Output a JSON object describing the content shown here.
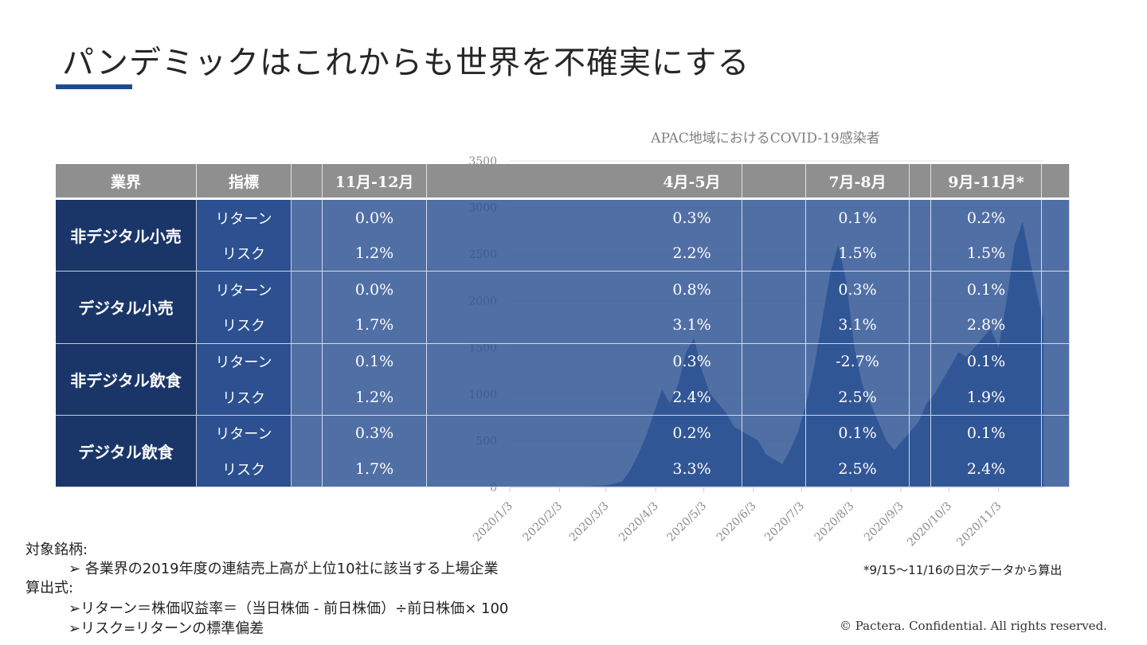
{
  "title": "パンデミックはこれからも世界を不確実にする",
  "colors": {
    "accent": "#1e4b8f",
    "header": "#8f8f8f",
    "industry": "#1a3668",
    "metric": "#2c5090",
    "area": "#2f5394"
  },
  "table": {
    "headers": [
      "業界",
      "指標",
      "11月-12月",
      "4月-5月",
      "7月-8月",
      "9月-11月*"
    ],
    "rows": [
      {
        "industry": "非デジタル小売",
        "metrics": [
          {
            "name": "リターン",
            "values": [
              "0.0%",
              "0.3%",
              "0.1%",
              "0.2%"
            ]
          },
          {
            "name": "リスク",
            "values": [
              "1.2%",
              "2.2%",
              "1.5%",
              "1.5%"
            ]
          }
        ]
      },
      {
        "industry": "デジタル小売",
        "metrics": [
          {
            "name": "リターン",
            "values": [
              "0.0%",
              "0.8%",
              "0.3%",
              "0.1%"
            ]
          },
          {
            "name": "リスク",
            "values": [
              "1.7%",
              "3.1%",
              "3.1%",
              "2.8%"
            ]
          }
        ]
      },
      {
        "industry": "非デジタル飲食",
        "metrics": [
          {
            "name": "リターン",
            "values": [
              "0.1%",
              "0.3%",
              "-2.7%",
              "0.1%"
            ]
          },
          {
            "name": "リスク",
            "values": [
              "1.2%",
              "2.4%",
              "2.5%",
              "1.9%"
            ]
          }
        ]
      },
      {
        "industry": "デジタル飲食",
        "metrics": [
          {
            "name": "リターン",
            "values": [
              "0.3%",
              "0.2%",
              "0.1%",
              "0.1%"
            ]
          },
          {
            "name": "リスク",
            "values": [
              "1.7%",
              "3.3%",
              "2.5%",
              "2.4%"
            ]
          }
        ]
      }
    ]
  },
  "chart_data": {
    "type": "area",
    "title": "APAC地域におけるCOVID-19感染者",
    "ylim": [
      0,
      3500
    ],
    "yticks": [
      "0",
      "500",
      "1000",
      "1500",
      "2000",
      "2500",
      "3000",
      "3500"
    ],
    "xticks": [
      "2020/1/3",
      "2020/2/3",
      "2020/3/3",
      "2020/4/3",
      "2020/5/3",
      "2020/6/3",
      "2020/7/3",
      "2020/8/3",
      "2020/9/3",
      "2020/10/3",
      "2020/11/3"
    ],
    "xlim_days": [
      0,
      333
    ],
    "series": [
      {
        "name": "COVID-19感染者",
        "x_days": [
          0,
          20,
          40,
          60,
          65,
          70,
          75,
          80,
          85,
          88,
          92,
          95,
          100,
          105,
          110,
          115,
          120,
          125,
          130,
          135,
          140,
          145,
          150,
          155,
          160,
          165,
          170,
          175,
          180,
          185,
          190,
          195,
          200,
          205,
          210,
          215,
          220,
          225,
          230,
          235,
          240,
          245,
          250,
          255,
          260,
          265,
          270,
          275,
          280,
          285,
          290,
          295,
          300,
          305,
          310,
          315,
          320,
          325,
          330,
          333
        ],
        "values": [
          0,
          0,
          5,
          20,
          40,
          60,
          180,
          350,
          550,
          700,
          900,
          1050,
          900,
          1100,
          1450,
          1600,
          1250,
          1000,
          900,
          800,
          650,
          600,
          550,
          500,
          350,
          300,
          250,
          400,
          600,
          900,
          1300,
          1800,
          2300,
          2600,
          2200,
          1500,
          1100,
          900,
          700,
          500,
          400,
          500,
          600,
          700,
          900,
          1000,
          1150,
          1300,
          1450,
          1400,
          1500,
          1600,
          1700,
          1500,
          2000,
          2600,
          2850,
          2400,
          2000,
          1800
        ]
      }
    ]
  },
  "footer": {
    "target_label": "対象銘柄:",
    "target_item": "➢ 各業界の2019年度の連結売上高が上位10社に該当する上場企業",
    "formula_label": "算出式:",
    "formula_return": "➢リターン＝株価収益率＝（当日株価 - 前日株価）÷前日株価× 100",
    "formula_risk": "➢リスク=リターンの標準偏差",
    "note": "*9/15～11/16の日次データから算出",
    "copyright": "© Pactera.  Confidential.  All rights reserved."
  }
}
